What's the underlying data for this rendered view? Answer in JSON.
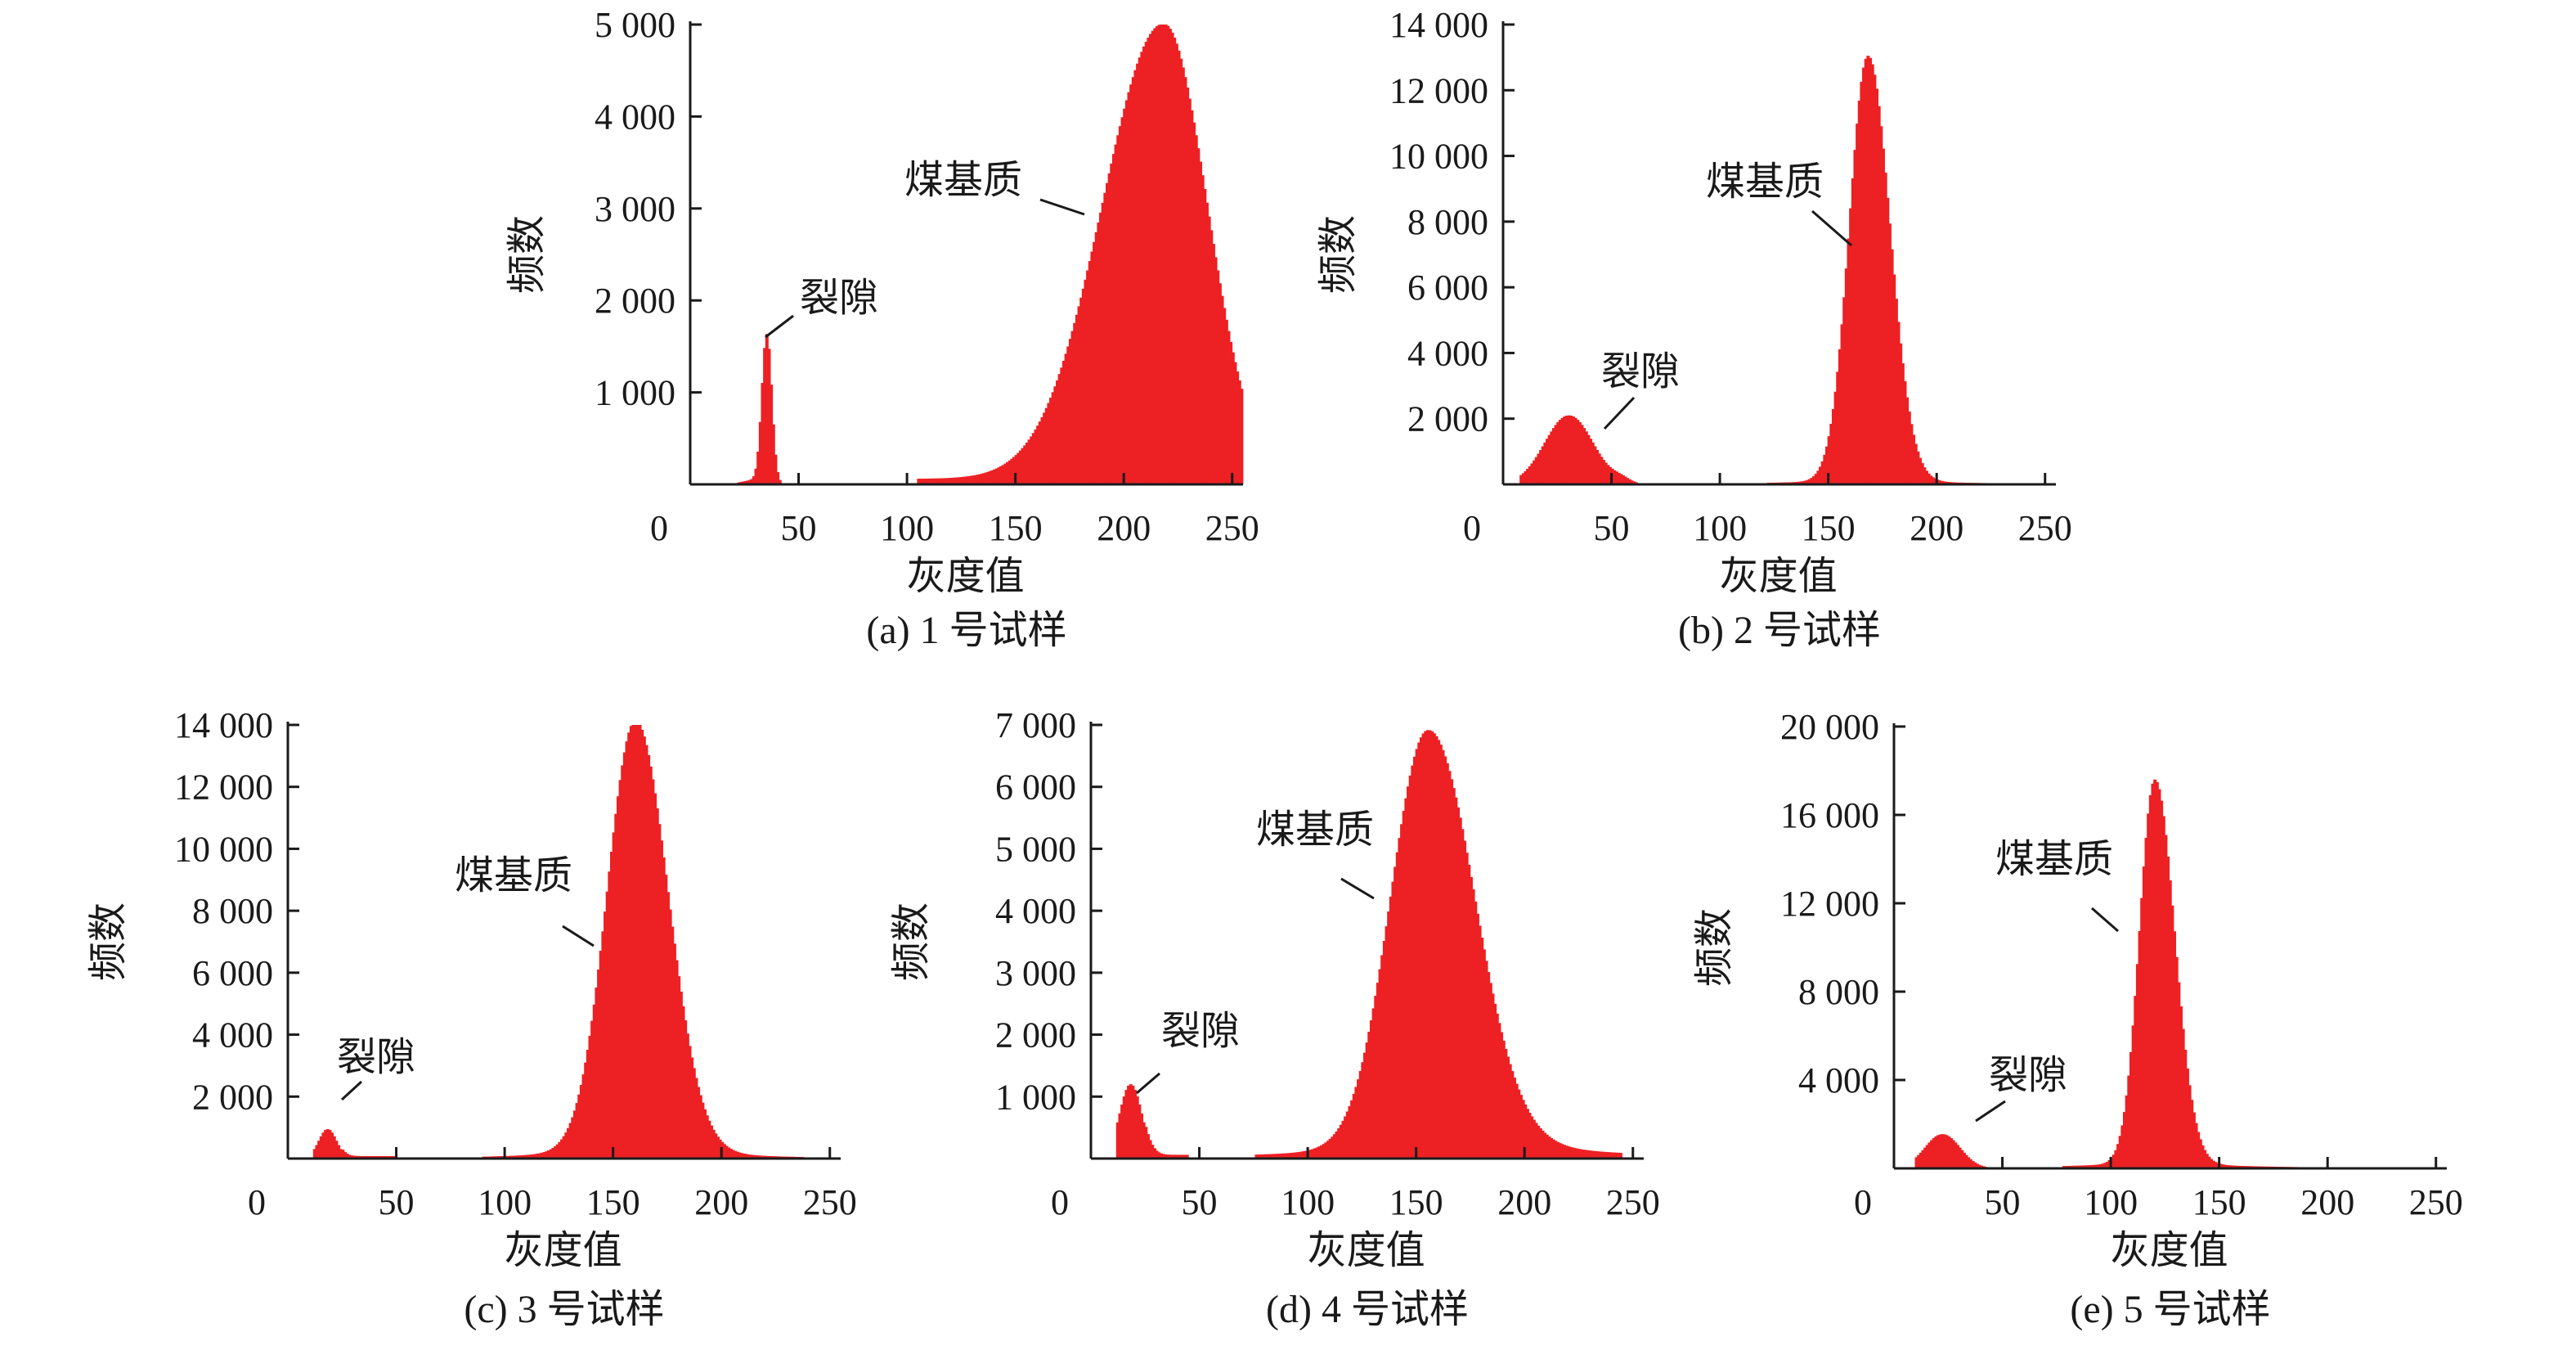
{
  "figure": {
    "bar_color": "#ed2024",
    "text_color": "#1a1a1a",
    "axis_color": "#1a1a1a"
  },
  "chart_data": [
    {
      "id": "a",
      "type": "bar",
      "caption": "(a) 1 号试样",
      "xlabel": "灰度值",
      "ylabel": "频数",
      "xlim": [
        0,
        255
      ],
      "ylim": [
        0,
        5000
      ],
      "xticks": [
        0,
        50,
        100,
        150,
        200,
        250
      ],
      "xtick_labels": [
        "0",
        "50",
        "100",
        "150",
        "200",
        "250"
      ],
      "yticks": [
        1000,
        2000,
        3000,
        4000,
        5000
      ],
      "ytick_labels": [
        "1 000",
        "2 000",
        "3 000",
        "4 000",
        "5 000"
      ],
      "x_range": [
        20,
        254
      ],
      "peaks": [
        {
          "label": "裂隙",
          "center": 35,
          "peak": 1600
        },
        {
          "label": "煤基质",
          "center": 218,
          "peak": 4950
        }
      ],
      "annotations": [
        "裂隙",
        "煤基质"
      ]
    },
    {
      "id": "b",
      "type": "bar",
      "caption": "(b) 2 号试样",
      "xlabel": "灰度值",
      "ylabel": "频数",
      "xlim": [
        0,
        255
      ],
      "ylim": [
        0,
        14000
      ],
      "xticks": [
        0,
        50,
        100,
        150,
        200,
        250
      ],
      "xtick_labels": [
        "0",
        "50",
        "100",
        "150",
        "200",
        "250"
      ],
      "yticks": [
        2000,
        4000,
        6000,
        8000,
        10000,
        12000,
        14000
      ],
      "ytick_labels": [
        "2 000",
        "4 000",
        "6 000",
        "8 000",
        "10 000",
        "12 000",
        "14 000"
      ],
      "x_range": [
        5,
        250
      ],
      "peaks": [
        {
          "label": "裂隙",
          "center": 30,
          "peak": 2100
        },
        {
          "label": "煤基质",
          "center": 168,
          "peak": 12900
        }
      ],
      "annotations": [
        "裂隙",
        "煤基质"
      ]
    },
    {
      "id": "c",
      "type": "bar",
      "caption": "(c) 3 号试样",
      "xlabel": "灰度值",
      "ylabel": "频数",
      "xlim": [
        0,
        255
      ],
      "ylim": [
        0,
        14000
      ],
      "xticks": [
        0,
        50,
        100,
        150,
        200,
        250
      ],
      "xtick_labels": [
        "0",
        "50",
        "100",
        "150",
        "200",
        "250"
      ],
      "yticks": [
        2000,
        4000,
        6000,
        8000,
        10000,
        12000,
        14000
      ],
      "ytick_labels": [
        "2 000",
        "4 000",
        "6 000",
        "8 000",
        "10 000",
        "12 000",
        "14 000"
      ],
      "x_range": [
        10,
        238
      ],
      "peaks": [
        {
          "label": "裂隙",
          "center": 18,
          "peak": 950
        },
        {
          "label": "煤基质",
          "center": 160,
          "peak": 13700
        }
      ],
      "annotations": [
        "裂隙",
        "煤基质"
      ]
    },
    {
      "id": "d",
      "type": "bar",
      "caption": "(d) 4 号试样",
      "xlabel": "灰度值",
      "ylabel": "频数",
      "xlim": [
        0,
        255
      ],
      "ylim": [
        0,
        7000
      ],
      "xticks": [
        0,
        50,
        100,
        150,
        200,
        250
      ],
      "xtick_labels": [
        "0",
        "50",
        "100",
        "150",
        "200",
        "250"
      ],
      "yticks": [
        1000,
        2000,
        3000,
        4000,
        5000,
        6000,
        7000
      ],
      "ytick_labels": [
        "1 000",
        "2 000",
        "3 000",
        "4 000",
        "5 000",
        "6 000",
        "7 000"
      ],
      "x_range": [
        10,
        245
      ],
      "peaks": [
        {
          "label": "裂隙",
          "center": 18,
          "peak": 1200
        },
        {
          "label": "煤基质",
          "center": 155,
          "peak": 6650
        }
      ],
      "annotations": [
        "裂隙",
        "煤基质"
      ]
    },
    {
      "id": "e",
      "type": "bar",
      "caption": "(e) 5 号试样",
      "xlabel": "灰度值",
      "ylabel": "频数",
      "xlim": [
        0,
        255
      ],
      "ylim": [
        0,
        20000
      ],
      "xticks": [
        0,
        50,
        100,
        150,
        200,
        250
      ],
      "xtick_labels": [
        "0",
        "50",
        "100",
        "150",
        "200",
        "250"
      ],
      "yticks": [
        4000,
        8000,
        12000,
        16000,
        20000
      ],
      "ytick_labels": [
        "4 000",
        "8 000",
        "12 000",
        "16 000",
        "20 000"
      ],
      "x_range": [
        10,
        250
      ],
      "peaks": [
        {
          "label": "裂隙",
          "center": 22,
          "peak": 1550
        },
        {
          "label": "煤基质",
          "center": 120,
          "peak": 17300
        }
      ],
      "annotations": [
        "裂隙",
        "煤基质"
      ]
    }
  ]
}
